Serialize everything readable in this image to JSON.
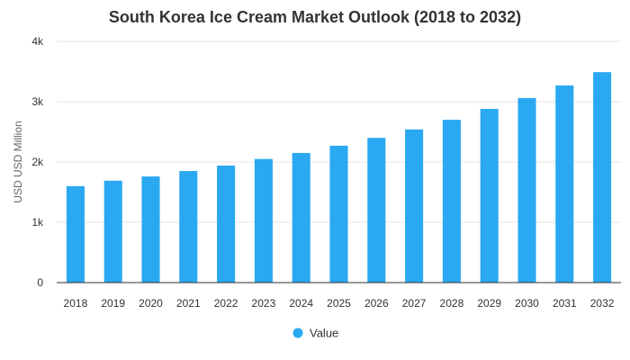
{
  "chart_data": {
    "type": "bar",
    "title": "South Korea Ice Cream Market Outlook (2018 to 2032)",
    "xlabel": "",
    "ylabel": "USD USD Million",
    "categories": [
      "2018",
      "2019",
      "2020",
      "2021",
      "2022",
      "2023",
      "2024",
      "2025",
      "2026",
      "2027",
      "2028",
      "2029",
      "2030",
      "2031",
      "2032"
    ],
    "series": [
      {
        "name": "Value",
        "color": "#2aa8f2",
        "values": [
          1600,
          1690,
          1760,
          1850,
          1940,
          2050,
          2150,
          2270,
          2400,
          2540,
          2700,
          2880,
          3060,
          3270,
          3490
        ]
      }
    ],
    "ylim": [
      0,
      4000
    ],
    "yticks": [
      {
        "value": 0,
        "label": "0"
      },
      {
        "value": 1000,
        "label": "1k"
      },
      {
        "value": 2000,
        "label": "2k"
      },
      {
        "value": 3000,
        "label": "3k"
      },
      {
        "value": 4000,
        "label": "4k"
      }
    ],
    "grid": true,
    "legend_position": "bottom"
  }
}
